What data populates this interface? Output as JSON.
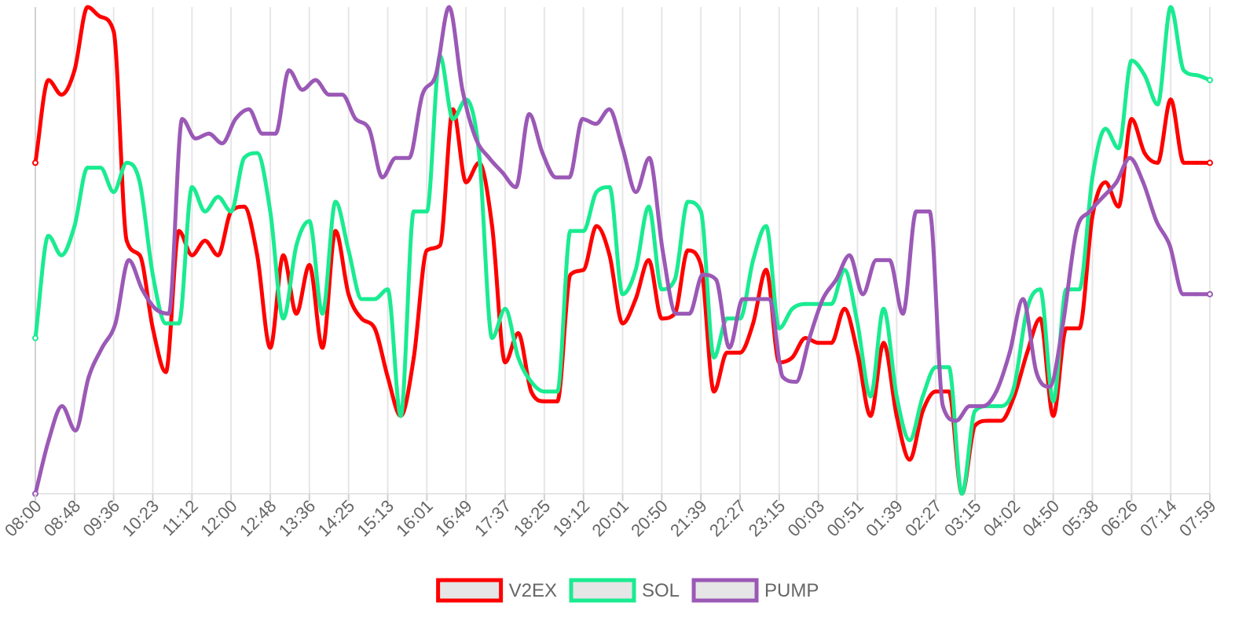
{
  "chart_data": {
    "type": "line",
    "title": "",
    "xlabel": "",
    "ylabel": "",
    "grid": "vertical",
    "legend_position": "bottom",
    "ylim": [
      0,
      100
    ],
    "x_tick_labels": [
      "08:00",
      "08:48",
      "09:36",
      "10:23",
      "11:12",
      "12:00",
      "12:48",
      "13:36",
      "14:25",
      "15:13",
      "16:01",
      "16:49",
      "17:37",
      "18:25",
      "19:12",
      "20:01",
      "20:50",
      "21:39",
      "22:27",
      "23:15",
      "00:03",
      "00:51",
      "01:39",
      "02:27",
      "03:15",
      "04:02",
      "04:50",
      "05:38",
      "06:26",
      "07:14",
      "07:59"
    ],
    "series": [
      {
        "name": "V2EX",
        "color": "#ff0000",
        "values": [
          68,
          85,
          82,
          87,
          100,
          98,
          95,
          52,
          49,
          34,
          25,
          54,
          49,
          52,
          49,
          58,
          59,
          49,
          30,
          49,
          37,
          47,
          30,
          54,
          41,
          36,
          34,
          24,
          16,
          28,
          50,
          51,
          79,
          64,
          68,
          55,
          27,
          33,
          21,
          19,
          19,
          45,
          46,
          55,
          49,
          35,
          40,
          48,
          36,
          37,
          50,
          47,
          21,
          29,
          29,
          35,
          46,
          27,
          28,
          32,
          31,
          31,
          38,
          29,
          16,
          31,
          16,
          7,
          17,
          21,
          21,
          0,
          14,
          15,
          15,
          20,
          29,
          36,
          16,
          34,
          34,
          57,
          64,
          59,
          77,
          70,
          68,
          81,
          68,
          68,
          68
        ]
      },
      {
        "name": "SOL",
        "color": "#1aeb91",
        "values": [
          32,
          53,
          49,
          55,
          67,
          67,
          62,
          68,
          64,
          45,
          35,
          35,
          63,
          58,
          61,
          58,
          69,
          70,
          58,
          36,
          51,
          56,
          37,
          60,
          50,
          40,
          40,
          42,
          16,
          58,
          58,
          90,
          77,
          81,
          70,
          32,
          38,
          28,
          23,
          21,
          21,
          54,
          54,
          62,
          63,
          41,
          46,
          59,
          42,
          44,
          60,
          58,
          28,
          36,
          36,
          48,
          55,
          34,
          38,
          39,
          39,
          39,
          46,
          35,
          20,
          38,
          20,
          11,
          20,
          26,
          26,
          0,
          17,
          18,
          18,
          22,
          38,
          42,
          19,
          42,
          42,
          65,
          75,
          71,
          89,
          86,
          80,
          100,
          87,
          86,
          85
        ]
      },
      {
        "name": "PUMP",
        "color": "#9b59b6",
        "values": [
          0,
          11,
          18,
          13,
          24,
          30,
          35,
          48,
          42,
          38,
          37,
          77,
          73,
          74,
          72,
          77,
          79,
          74,
          74,
          87,
          83,
          85,
          82,
          82,
          77,
          75,
          65,
          69,
          69,
          82,
          86,
          100,
          83,
          73,
          69,
          66,
          63,
          78,
          70,
          65,
          65,
          77,
          76,
          79,
          71,
          62,
          69,
          50,
          37,
          37,
          45,
          44,
          30,
          40,
          40,
          40,
          24,
          23,
          32,
          40,
          44,
          49,
          41,
          48,
          48,
          37,
          58,
          58,
          18,
          15,
          18,
          18,
          21,
          29,
          40,
          25,
          22,
          35,
          54,
          58,
          61,
          64,
          69,
          64,
          56,
          51,
          41,
          41,
          41
        ]
      }
    ]
  }
}
